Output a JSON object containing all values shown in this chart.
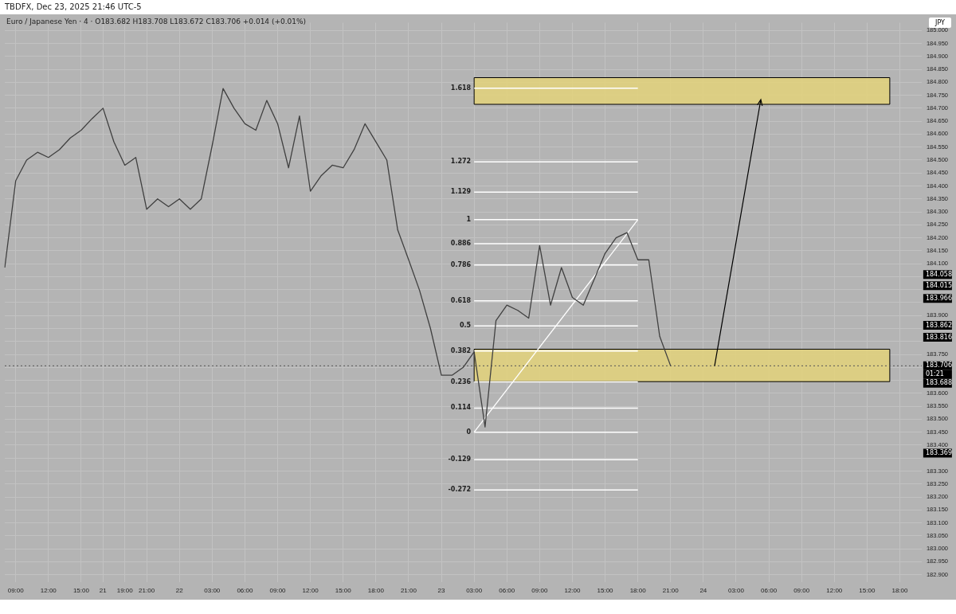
{
  "chart_data": {
    "type": "line",
    "title": "Euro / Japanese Yen · 4 · O183.682 H183.708 L183.672 C183.706 +0.014 (+0.01%)",
    "subtitle": "TBDFX, Dec 23, 2025 21:46 UTC-5",
    "categories": [
      null,
      "09:00",
      null,
      null,
      "12:00",
      null,
      null,
      "15:00",
      null,
      "21",
      null,
      "19:00",
      null,
      "21:00",
      null,
      null,
      "22",
      null,
      null,
      "03:00",
      null,
      null,
      "06:00",
      null,
      null,
      "09:00",
      null,
      null,
      "12:00",
      null,
      null,
      "15:00",
      null,
      null,
      "18:00",
      null,
      null,
      "21:00",
      null,
      null,
      "23",
      null,
      null,
      "03:00",
      null,
      null,
      "06:00",
      null,
      null,
      "09:00",
      null,
      null,
      "12:00",
      null,
      null,
      "15:00",
      null,
      null,
      "18:00",
      null,
      null,
      "21:00",
      null,
      null,
      "24",
      null,
      null,
      "03:00",
      null,
      null,
      "06:00",
      null,
      null,
      "09:00",
      null,
      null,
      "12:00",
      null,
      null,
      "15:00",
      null,
      null,
      "18:00",
      null,
      null
    ],
    "series": [
      {
        "color": "#404040",
        "values": [
          184.085,
          184.42,
          184.5,
          184.53,
          184.51,
          184.54,
          184.585,
          184.615,
          184.66,
          184.7,
          184.57,
          184.48,
          184.51,
          184.31,
          184.35,
          184.32,
          184.35,
          184.31,
          184.35,
          184.556,
          184.776,
          184.7,
          184.64,
          184.615,
          184.73,
          184.64,
          184.47,
          184.67,
          184.38,
          184.44,
          184.48,
          184.47,
          184.54,
          184.64,
          184.57,
          184.5,
          184.23,
          184.115,
          183.997,
          183.85,
          183.67,
          183.67,
          183.7,
          183.76,
          183.47,
          183.88,
          183.94,
          183.92,
          183.89,
          184.17,
          183.94,
          184.085,
          183.97,
          183.94,
          184.04,
          184.14,
          184.2,
          184.22,
          184.115,
          184.115,
          183.82,
          183.706,
          null,
          null,
          null,
          null,
          null,
          null,
          null,
          null,
          null,
          null,
          null,
          null,
          null,
          null,
          null,
          null,
          null,
          null,
          null,
          null,
          null,
          null,
          null
        ]
      },
      {
        "color": "#ffffff",
        "values": [
          null,
          null,
          null,
          null,
          null,
          null,
          null,
          null,
          null,
          null,
          null,
          null,
          null,
          null,
          null,
          null,
          null,
          null,
          null,
          null,
          null,
          null,
          null,
          null,
          null,
          null,
          null,
          null,
          null,
          null,
          null,
          null,
          null,
          null,
          null,
          null,
          null,
          null,
          null,
          null,
          null,
          null,
          null,
          183.45,
          null,
          null,
          null,
          null,
          null,
          null,
          null,
          null,
          null,
          null,
          null,
          null,
          null,
          null,
          184.27,
          null,
          null,
          null,
          null,
          null,
          null,
          null,
          null,
          null,
          null,
          null,
          null,
          null,
          null,
          null,
          null,
          null,
          null,
          null,
          null,
          null,
          null,
          null,
          null,
          null,
          null
        ]
      }
    ],
    "ylim": [
      182.87,
      185.03
    ],
    "yticks": [
      {
        "value": 182.9,
        "label": "182.900"
      },
      {
        "value": 182.95,
        "label": "182.950"
      },
      {
        "value": 183.0,
        "label": "183.000"
      },
      {
        "value": 183.05,
        "label": "183.050"
      },
      {
        "value": 183.1,
        "label": "183.100"
      },
      {
        "value": 183.15,
        "label": "183.150"
      },
      {
        "value": 183.2,
        "label": "183.200"
      },
      {
        "value": 183.25,
        "label": "183.250"
      },
      {
        "value": 183.3,
        "label": "183.300"
      },
      {
        "value": 183.35,
        "label": null
      },
      {
        "value": 183.4,
        "label": "183.400"
      },
      {
        "value": 183.45,
        "label": "183.450"
      },
      {
        "value": 183.5,
        "label": "183.500"
      },
      {
        "value": 183.55,
        "label": "183.550"
      },
      {
        "value": 183.6,
        "label": "183.600"
      },
      {
        "value": 183.65,
        "label": null
      },
      {
        "value": 183.7,
        "label": null
      },
      {
        "value": 183.75,
        "label": "183.750"
      },
      {
        "value": 183.8,
        "label": null
      },
      {
        "value": 183.85,
        "label": null
      },
      {
        "value": 183.9,
        "label": "183.900"
      },
      {
        "value": 183.95,
        "label": null
      },
      {
        "value": 184.0,
        "label": null
      },
      {
        "value": 184.05,
        "label": null
      },
      {
        "value": 184.1,
        "label": "184.100"
      },
      {
        "value": 184.15,
        "label": "184.150"
      },
      {
        "value": 184.2,
        "label": "184.200"
      },
      {
        "value": 184.25,
        "label": "184.250"
      },
      {
        "value": 184.3,
        "label": "184.300"
      },
      {
        "value": 184.35,
        "label": "184.350"
      },
      {
        "value": 184.4,
        "label": "184.400"
      },
      {
        "value": 184.45,
        "label": "184.450"
      },
      {
        "value": 184.5,
        "label": "184.500"
      },
      {
        "value": 184.55,
        "label": "184.550"
      },
      {
        "value": 184.6,
        "label": "184.600"
      },
      {
        "value": 184.65,
        "label": "184.650"
      },
      {
        "value": 184.7,
        "label": "184.700"
      },
      {
        "value": 184.75,
        "label": "184.750"
      },
      {
        "value": 184.8,
        "label": "184.800"
      },
      {
        "value": 184.85,
        "label": "184.850"
      },
      {
        "value": 184.9,
        "label": "184.900"
      },
      {
        "value": 184.95,
        "label": "184.950"
      },
      {
        "value": 185.0,
        "label": "185.000"
      }
    ],
    "ref_lines": [
      {
        "axis": "y",
        "value": 184.777,
        "color": "#ffffff"
      },
      {
        "axis": "y",
        "value": 184.493,
        "color": "#ffffff"
      },
      {
        "axis": "y",
        "value": 184.376,
        "color": "#ffffff"
      },
      {
        "axis": "y",
        "value": 184.27,
        "color": "#ffffff"
      },
      {
        "axis": "y",
        "value": 184.177,
        "color": "#ffffff"
      },
      {
        "axis": "y",
        "value": 184.095,
        "color": "#ffffff"
      },
      {
        "axis": "y",
        "value": 183.957,
        "color": "#ffffff"
      },
      {
        "axis": "y",
        "value": 183.86,
        "color": "#ffffff"
      },
      {
        "axis": "y",
        "value": 183.763,
        "color": "#ffffff"
      },
      {
        "axis": "y",
        "value": 183.644,
        "color": "#ffffff"
      },
      {
        "axis": "y",
        "value": 183.543,
        "color": "#ffffff"
      },
      {
        "axis": "y",
        "value": 183.45,
        "color": "#ffffff"
      },
      {
        "axis": "y",
        "value": 183.344,
        "color": "#ffffff"
      },
      {
        "axis": "y",
        "value": 183.227,
        "color": "#ffffff"
      },
      {
        "axis": "y",
        "value": 183.706,
        "label": "183.706",
        "color": "#555555",
        "line_style": "dotted"
      }
    ],
    "bands": [
      {
        "axis": "y",
        "from": 184.715,
        "to": 184.818,
        "color": "#e3d27a"
      },
      {
        "axis": "y",
        "from": 183.645,
        "to": 183.77,
        "color": "#e3d27a"
      }
    ],
    "annotations": [
      "JPY",
      {
        "text": "184.058",
        "y": 184.058
      },
      {
        "text": "184.015",
        "y": 184.015
      },
      {
        "text": "183.966",
        "y": 183.966
      },
      {
        "text": "183.862",
        "y": 183.862
      },
      {
        "text": "183.816",
        "y": 183.816
      },
      "01:21",
      "183.688",
      {
        "text": "183.369",
        "y": 183.369
      },
      "1.618",
      "1.272",
      "1.129",
      "1",
      "0.886",
      "0.786",
      "0.618",
      "0.5",
      "0.382",
      "0.236",
      "0.114",
      "0",
      "-0.129",
      "-0.272"
    ],
    "grid": true,
    "legend": false,
    "marker": "none"
  }
}
